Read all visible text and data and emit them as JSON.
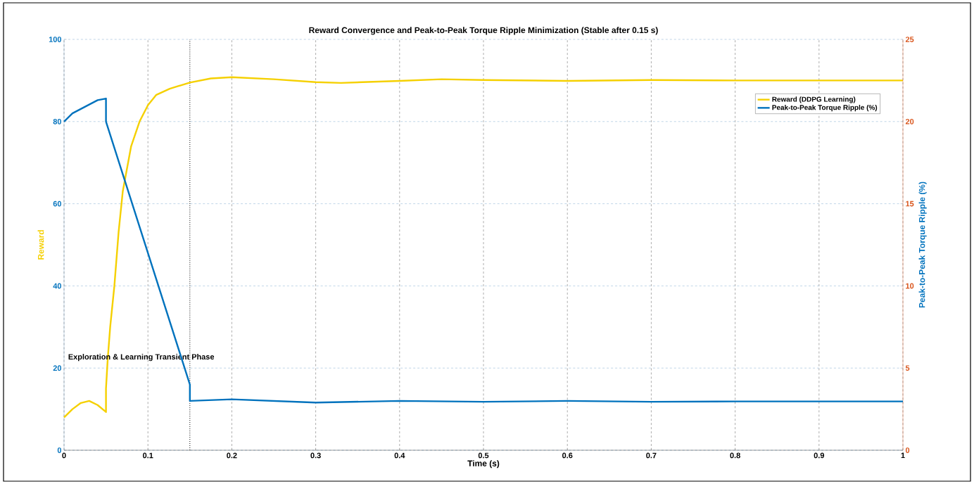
{
  "chart_data": {
    "type": "line",
    "title": "Reward Convergence and Peak-to-Peak Torque Ripple Minimization (Stable after 0.15 s)",
    "xlabel": "Time (s)",
    "ylabel": "Reward",
    "y2label": "Peak-to-Peak Torque Ripple (%)",
    "xlim": [
      0,
      1
    ],
    "xticks": [
      0,
      0.1,
      0.2,
      0.3,
      0.4,
      0.5,
      0.6,
      0.7,
      0.8,
      0.9,
      1
    ],
    "ylim": [
      0,
      100
    ],
    "yticks": [
      0,
      20,
      40,
      60,
      80,
      100
    ],
    "y2lim": [
      0,
      25
    ],
    "y2ticks": [
      0,
      5,
      10,
      15,
      20,
      25
    ],
    "grid": true,
    "legend": "top right",
    "line_style": "solid",
    "marker": "none",
    "ref_lines": [
      {
        "axis": "x",
        "value": 0.15,
        "label": null,
        "color": "#000000",
        "line_style": "dotted"
      }
    ],
    "annotations": [
      "Exploration & Learning Transient Phase"
    ],
    "series": [
      {
        "name": "Reward (DDPG Learning)",
        "color": "#f5d000",
        "axis": "y",
        "x": [
          0,
          0.01,
          0.02,
          0.03,
          0.04,
          0.05,
          0.05,
          0.052,
          0.055,
          0.06,
          0.065,
          0.07,
          0.08,
          0.09,
          0.1,
          0.11,
          0.126,
          0.15,
          0.175,
          0.2,
          0.25,
          0.3,
          0.33,
          0.4,
          0.45,
          0.5,
          0.6,
          0.7,
          0.8,
          0.9,
          1
        ],
        "values": [
          8,
          10,
          11.5,
          12,
          11,
          9.3,
          15,
          22,
          30,
          40,
          53,
          63,
          74,
          80,
          84,
          86.5,
          88,
          89.5,
          90.5,
          90.8,
          90.3,
          89.6,
          89.4,
          89.9,
          90.3,
          90.1,
          89.9,
          90.1,
          90,
          90,
          90
        ]
      },
      {
        "name": "Peak-to-Peak Torque Ripple (%)",
        "color": "#0072bd",
        "axis": "y2",
        "x": [
          0,
          0.01,
          0.025,
          0.04,
          0.05,
          0.05,
          0.15,
          0.15,
          0.2,
          0.3,
          0.4,
          0.5,
          0.6,
          0.7,
          0.8,
          0.9,
          1
        ],
        "values": [
          20,
          20.5,
          20.9,
          21.3,
          21.4,
          20,
          4,
          3,
          3.1,
          2.9,
          3,
          2.95,
          3,
          2.95,
          2.97,
          2.97,
          2.97
        ]
      }
    ]
  }
}
